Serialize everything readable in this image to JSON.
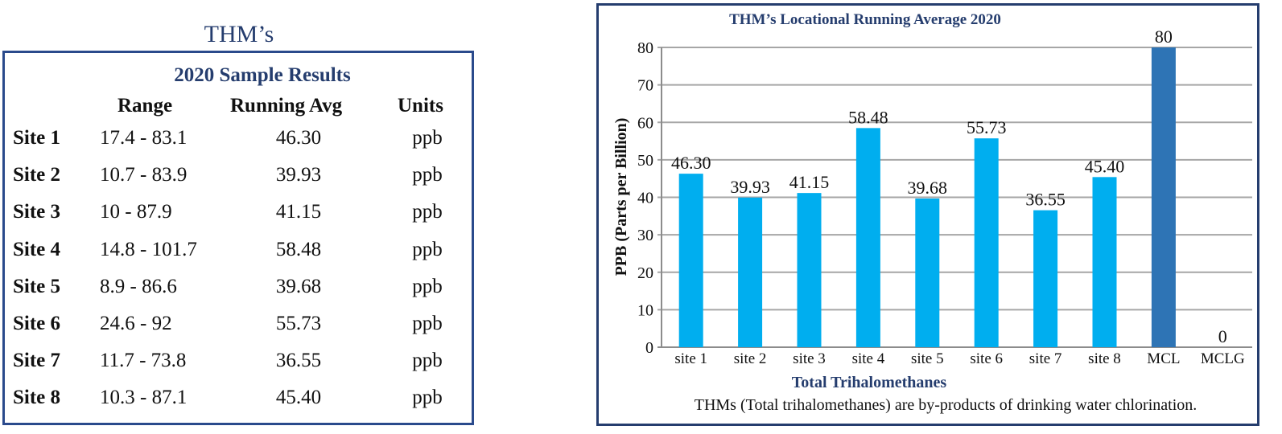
{
  "table": {
    "title": "THM’s",
    "subtitle": "2020 Sample Results",
    "headers": [
      "Range",
      "Running Avg",
      "Units"
    ],
    "rows": [
      {
        "site": "Site 1",
        "range": "17.4 - 83.1",
        "avg": "46.30",
        "units": "ppb"
      },
      {
        "site": "Site 2",
        "range": "10.7 - 83.9",
        "avg": "39.93",
        "units": "ppb"
      },
      {
        "site": "Site 3",
        "range": "10 - 87.9",
        "avg": "41.15",
        "units": "ppb"
      },
      {
        "site": "Site 4",
        "range": "14.8 - 101.7",
        "avg": "58.48",
        "units": "ppb"
      },
      {
        "site": "Site 5",
        "range": "8.9 - 86.6",
        "avg": "39.68",
        "units": "ppb"
      },
      {
        "site": "Site 6",
        "range": "24.6 - 92",
        "avg": "55.73",
        "units": "ppb"
      },
      {
        "site": "Site 7",
        "range": "11.7 - 73.8",
        "avg": "36.55",
        "units": "ppb"
      },
      {
        "site": "Site 8",
        "range": "10.3 - 87.1",
        "avg": "45.40",
        "units": "ppb"
      }
    ]
  },
  "chart_data": {
    "type": "bar",
    "title": "THM’s Locational Running Average 2020",
    "xlabel": "Total Trihalomethanes",
    "ylabel": "PPB (Parts per Billion)",
    "caption": "THMs (Total trihalomethanes) are by-products of drinking water chlorination.",
    "categories": [
      "site 1",
      "site 2",
      "site 3",
      "site 4",
      "site 5",
      "site 6",
      "site 7",
      "site 8",
      "MCL",
      "MCLG"
    ],
    "values": [
      46.3,
      39.93,
      41.15,
      58.48,
      39.68,
      55.73,
      36.55,
      45.4,
      80,
      0
    ],
    "labels": [
      "46.30",
      "39.93",
      "41.15",
      "58.48",
      "39.68",
      "55.73",
      "36.55",
      "45.40",
      "80",
      "0"
    ],
    "ylim": [
      0,
      80
    ],
    "yticks": [
      0,
      10,
      20,
      30,
      40,
      50,
      60,
      70,
      80
    ],
    "grid": true,
    "colors": {
      "site": "#00aeef",
      "MCL": "#2e74b5",
      "grid": "#a6a6a6",
      "title": "#253d6e"
    }
  }
}
